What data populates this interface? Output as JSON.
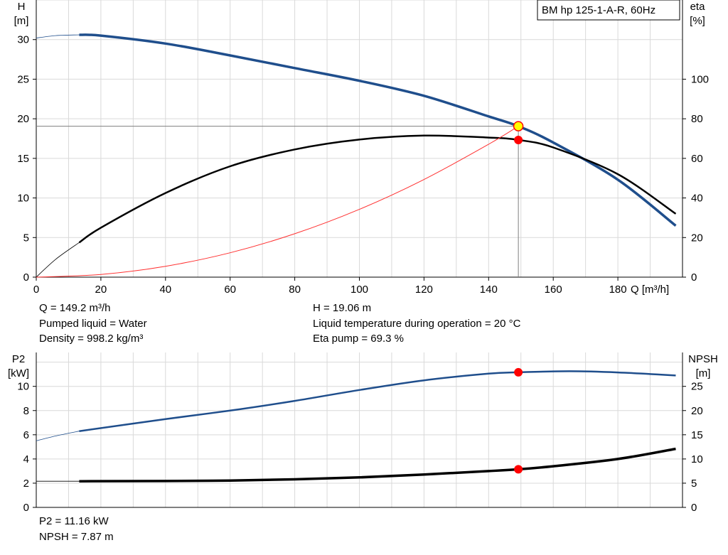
{
  "chart_data": [
    {
      "type": "line",
      "title": "BM hp 125-1-A-R, 60Hz",
      "xlabel": "Q [m³/h]",
      "ylabel_left": [
        "H",
        "[m]"
      ],
      "ylabel_right": [
        "eta",
        "[%]"
      ],
      "xlim": [
        0,
        200
      ],
      "ylim_left": [
        0,
        35
      ],
      "ylim_right": [
        0,
        140
      ],
      "x_ticks": [
        "0",
        "20",
        "40",
        "60",
        "80",
        "100",
        "120",
        "140",
        "160",
        "180"
      ],
      "y_ticks_left": [
        "0",
        "5",
        "10",
        "15",
        "20",
        "25",
        "30"
      ],
      "y_ticks_right": [
        "0",
        "20",
        "40",
        "60",
        "80",
        "100"
      ],
      "grid": true,
      "series": [
        {
          "name": "H",
          "axis": "left",
          "color": "#1f4e8c",
          "extrapolated": {
            "x": [
              0,
              6,
              13.3
            ],
            "y": [
              30.2,
              30.5,
              30.6
            ]
          },
          "x": [
            13.3,
            20,
            40,
            60,
            80,
            100,
            120,
            140,
            149.2,
            160,
            180,
            197.9
          ],
          "y": [
            30.6,
            30.5,
            29.5,
            28.0,
            26.4,
            24.8,
            22.9,
            20.3,
            19.06,
            17.0,
            12.3,
            6.5
          ]
        },
        {
          "name": "eta",
          "axis": "right",
          "color": "#000000",
          "extrapolated": {
            "x": [
              0,
              6,
              13.3
            ],
            "y": [
              0,
              9,
              17.5
            ]
          },
          "x": [
            13.3,
            20,
            40,
            60,
            80,
            100,
            120,
            140,
            149.2,
            160,
            180,
            197.9
          ],
          "y": [
            17.5,
            25,
            42.5,
            56,
            64.5,
            69.5,
            71.5,
            70.5,
            69.3,
            65.5,
            52,
            32
          ]
        },
        {
          "name": "system-curve",
          "axis": "left",
          "color": "#ff3030",
          "x": [
            0,
            20,
            40,
            60,
            80,
            100,
            120,
            140,
            149.2
          ],
          "y": [
            0,
            0.34,
            1.37,
            3.08,
            5.48,
            8.56,
            12.33,
            16.78,
            19.06
          ]
        }
      ],
      "operating_point": {
        "q": 149.2,
        "h": 19.06,
        "eta": 69.3
      }
    },
    {
      "type": "line",
      "xlim": [
        0,
        200
      ],
      "ylabel_left": [
        "P2",
        "[kW]"
      ],
      "ylabel_right": [
        "NPSH",
        "[m]"
      ],
      "ylim_left": [
        0,
        12.8
      ],
      "ylim_right": [
        0,
        32
      ],
      "y_ticks_left": [
        "0",
        "2",
        "4",
        "6",
        "8",
        "10"
      ],
      "y_ticks_right": [
        "0",
        "5",
        "10",
        "15",
        "20",
        "25"
      ],
      "grid": true,
      "series": [
        {
          "name": "P2",
          "axis": "left",
          "color": "#1f4e8c",
          "extrapolated": {
            "x": [
              0,
              6,
              13.3
            ],
            "y": [
              5.5,
              5.9,
              6.3
            ]
          },
          "x": [
            13.3,
            40,
            60,
            80,
            100,
            120,
            140,
            149.2,
            165,
            180,
            197.9
          ],
          "y": [
            6.3,
            7.3,
            8.0,
            8.8,
            9.7,
            10.5,
            11.05,
            11.16,
            11.25,
            11.15,
            10.9
          ]
        },
        {
          "name": "NPSH",
          "axis": "right",
          "color": "#000000",
          "extrapolated": {
            "x": [
              0,
              13.3
            ],
            "y": [
              5.4,
              5.4
            ]
          },
          "x": [
            13.3,
            40,
            60,
            80,
            100,
            120,
            140,
            149.2,
            160,
            180,
            197.9
          ],
          "y": [
            5.4,
            5.45,
            5.55,
            5.8,
            6.2,
            6.8,
            7.5,
            7.87,
            8.5,
            10.0,
            12.1
          ]
        }
      ],
      "operating_point": {
        "q": 149.2,
        "p2": 11.16,
        "npsh": 7.87
      }
    }
  ],
  "info": {
    "q": "Q = 149.2 m³/h",
    "pumped_liquid": "Pumped liquid = Water",
    "density": "Density = 998.2 kg/m³",
    "h": "H = 19.06 m",
    "liquid_temp": "Liquid temperature during operation = 20 °C",
    "eta_pump": "Eta pump = 69.3 %",
    "p2": "P2 = 11.16 kW",
    "npsh": "NPSH = 7.87 m"
  }
}
